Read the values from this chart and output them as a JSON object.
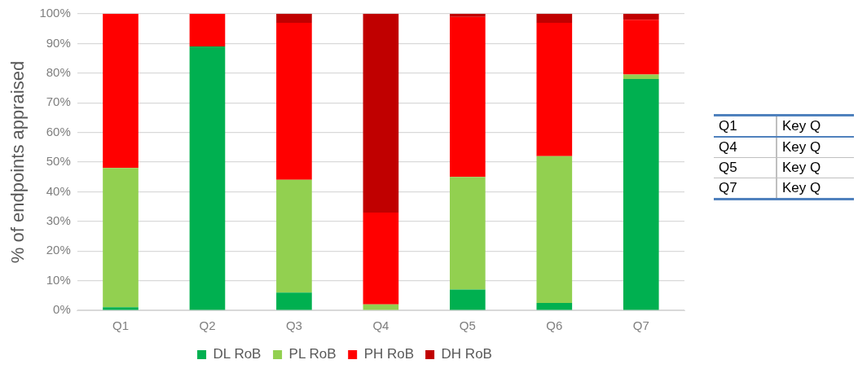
{
  "chart_data": {
    "type": "bar",
    "stacked": true,
    "ylabel": "% of endpoints appraised",
    "categories": [
      "Q1",
      "Q2",
      "Q3",
      "Q4",
      "Q5",
      "Q6",
      "Q7"
    ],
    "series": [
      {
        "name": "DL RoB",
        "color": "#00b050",
        "values": [
          1,
          89,
          6,
          0,
          7,
          2.5,
          78
        ]
      },
      {
        "name": "PL RoB",
        "color": "#92d050",
        "values": [
          47,
          0,
          38,
          2,
          38,
          49.5,
          1.5
        ]
      },
      {
        "name": "PH RoB",
        "color": "#ff0000",
        "values": [
          52,
          11,
          53,
          31,
          54,
          45,
          18.5
        ]
      },
      {
        "name": "DH RoB",
        "color": "#c00000",
        "values": [
          0,
          0,
          3,
          67,
          1,
          3,
          2
        ]
      }
    ],
    "ylim": [
      0,
      100
    ],
    "yticks": [
      {
        "value": 0,
        "label": "0%"
      },
      {
        "value": 10,
        "label": "10%"
      },
      {
        "value": 20,
        "label": "20%"
      },
      {
        "value": 30,
        "label": "30%"
      },
      {
        "value": 40,
        "label": "40%"
      },
      {
        "value": 50,
        "label": "50%"
      },
      {
        "value": 60,
        "label": "60%"
      },
      {
        "value": 70,
        "label": "70%"
      },
      {
        "value": 80,
        "label": "80%"
      },
      {
        "value": 90,
        "label": "90%"
      },
      {
        "value": 100,
        "label": "100%"
      }
    ],
    "grid": "y",
    "legend": "bottom",
    "annotations": [
      "Q1",
      "Key Q",
      "Q4",
      "Key Q",
      "Q5",
      "Key Q",
      "Q7",
      "Key Q"
    ]
  }
}
